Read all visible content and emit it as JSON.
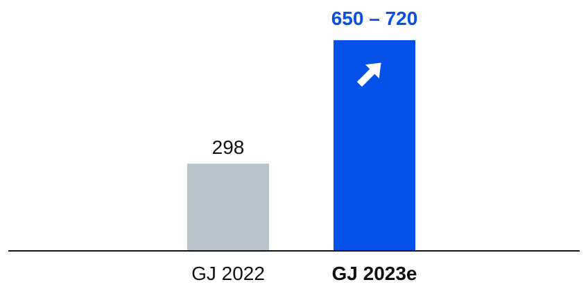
{
  "chart_data": {
    "type": "bar",
    "categories": [
      "GJ 2022",
      "GJ 2023e"
    ],
    "values": [
      298,
      720
    ],
    "range": [
      null,
      [
        650,
        720
      ]
    ],
    "data_labels": [
      "298",
      "650 – 720"
    ],
    "trend": [
      null,
      "up-arrow-icon"
    ],
    "colors": [
      "#b8c5cc",
      "#0550e8"
    ],
    "label_colors": [
      "#111111",
      "#0550e8"
    ],
    "category_emphasis": [
      "normal",
      "bold"
    ],
    "axis_color": "#111111",
    "ylim": [
      0,
      720
    ],
    "grid": false,
    "legend": "none",
    "title": "",
    "xlabel": "",
    "ylabel": ""
  }
}
